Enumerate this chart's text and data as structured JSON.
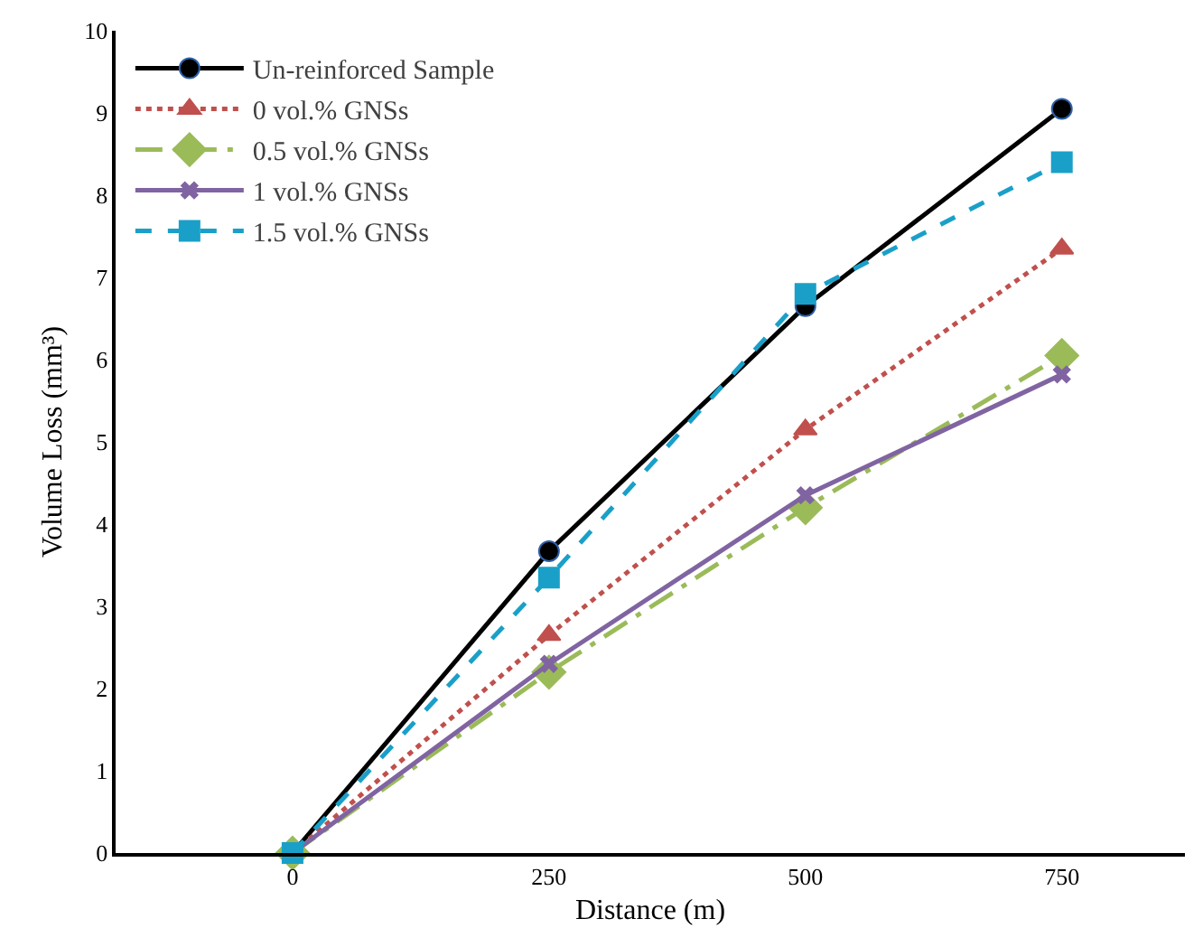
{
  "chart_data": {
    "type": "line",
    "xlabel": "Distance (m)",
    "ylabel": "Volume Loss (mm³)",
    "categories": [
      "0",
      "250",
      "500",
      "750"
    ],
    "ylim": [
      0,
      10
    ],
    "yticks": [
      0,
      1,
      2,
      3,
      4,
      5,
      6,
      7,
      8,
      9,
      10
    ],
    "grid": false,
    "legend": "top left",
    "series": [
      {
        "name": "Un-reinforced Sample",
        "color": "#000000",
        "marker": "circle",
        "line_style": "solid",
        "values": [
          0,
          3.67,
          6.65,
          9.05
        ]
      },
      {
        "name": "0 vol.% GNSs",
        "color": "#c0504d",
        "marker": "triangle",
        "line_style": "dotted",
        "values": [
          0,
          2.65,
          5.15,
          7.35
        ]
      },
      {
        "name": "0.5 vol.% GNSs",
        "color": "#9bbb59",
        "marker": "diamond",
        "line_style": "dashdot",
        "values": [
          0,
          2.2,
          4.2,
          6.05
        ]
      },
      {
        "name": "1 vol.% GNSs",
        "color": "#8064a2",
        "marker": "cross",
        "line_style": "solid",
        "values": [
          0,
          2.3,
          4.35,
          5.82
        ]
      },
      {
        "name": "1.5 vol.% GNSs",
        "color": "#1aa0c8",
        "marker": "square",
        "line_style": "dashed",
        "values": [
          0,
          3.35,
          6.8,
          8.4
        ]
      }
    ]
  }
}
